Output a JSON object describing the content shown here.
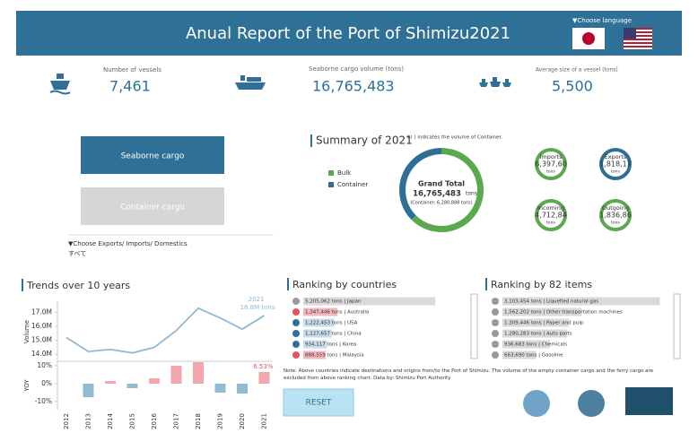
{
  "header": {
    "title": "Anual Report of the Port of Shimizu2021",
    "language_label": "▼Choose language"
  },
  "kpis": [
    {
      "label": "Number of vessels",
      "value": "7,461"
    },
    {
      "label": "Seaborne cargo volume (tons)",
      "value": "16,765,483"
    },
    {
      "label": "Average size of a vessel (tons)",
      "value": "5,500"
    }
  ],
  "buttons": {
    "seaborne": "Seaborne cargo",
    "container": "Container cargo",
    "reset": "RESET"
  },
  "filter": {
    "label": "▼Choose Exports/ Imports/ Domestics",
    "value": "すべて"
  },
  "summary": {
    "title": "Summary of 2021",
    "note": "※( ) indicates the volume of Container.",
    "grand_total_label": "Grand Total",
    "grand_total": "16,765,483",
    "unit": "tons",
    "container_note": "(Container: 6,280,888 tons)",
    "circles": [
      {
        "label": "Imports",
        "value": "6,397,60",
        "unit": "tons"
      },
      {
        "label": "Exports",
        "value": "1,818,17",
        "unit": "tons"
      },
      {
        "label": "Incoming",
        "value": "4,712,84",
        "unit": "tons"
      },
      {
        "label": "Outgoing",
        "value": "1,836,86",
        "unit": "tons"
      }
    ]
  },
  "rank_titles": {
    "countries": "Ranking by countries",
    "items": "Ranking by 82 items"
  },
  "footnote": "Note: Above countries indicate destinations and origins from/to the Port of Shimizu. The volume of the empty container cargo and the ferry cargo are excluded from above ranking chart. Data by: Shimizu Port Authority",
  "chart_data": [
    {
      "type": "line",
      "title": "Trends over 10 years",
      "y_label": "Volume",
      "color": "#8fb8d2",
      "categories": [
        "2012",
        "2013",
        "2014",
        "2015",
        "2016",
        "2017",
        "2018",
        "2019",
        "2020",
        "2021"
      ],
      "values": [
        15.2,
        14.2,
        14.35,
        14.1,
        14.5,
        15.7,
        17.3,
        16.6,
        15.8,
        16.77
      ],
      "value_labels": [
        null,
        null,
        null,
        null,
        null,
        null,
        null,
        null,
        null,
        "16.8M tons"
      ],
      "annotation": "2021",
      "ylim": [
        13.5,
        17.8
      ],
      "yticks": [
        {
          "value": 14,
          "label": "14.0M"
        },
        {
          "value": 15,
          "label": "15.0M"
        },
        {
          "value": 16,
          "label": "16.0M"
        },
        {
          "value": 17,
          "label": "17.0M"
        }
      ]
    },
    {
      "type": "bar",
      "y_label": "YOY",
      "positive_color": "#f1a7ad",
      "negative_color": "#93bcd3",
      "values": [
        null,
        -7.5,
        1.5,
        -2.5,
        3,
        10,
        12,
        -5,
        -5.5,
        6.53
      ],
      "value_labels": [
        null,
        null,
        null,
        null,
        null,
        null,
        null,
        null,
        null,
        "6.53%"
      ],
      "ylim": [
        -14.5,
        12.5
      ],
      "yticks": [
        {
          "value": -10,
          "label": "-10%"
        },
        {
          "value": 0,
          "label": "0%"
        },
        {
          "value": 10,
          "label": "10%"
        }
      ]
    },
    {
      "type": "donut",
      "categories": [
        "Bulk",
        "Container"
      ],
      "values": [
        10484595,
        6280888
      ],
      "colors": [
        "#5ba84e",
        "#2e6f96"
      ]
    },
    {
      "type": "hbar",
      "labels": [
        "5,205,062 tons | Japan",
        "1,347,446 tons | Australia",
        "1,222,453 tons | USA",
        "1,127,657 tons | China",
        "934,117 tons | Korea",
        "888,559 tons | Malaysia"
      ],
      "values": [
        5205062,
        1347446,
        1222453,
        1127657,
        934117,
        888559
      ],
      "colors": [
        "#d9d9d9",
        "#f4b8bc",
        "#c7dce8",
        "#c7dce8",
        "#c7dce8",
        "#f4b8bc"
      ],
      "xlim": [
        0,
        5300000
      ]
    },
    {
      "type": "hbar",
      "labels": [
        "3,103,454 tons | Liquefied natural gas",
        "1,562,202 tons | Other transportation machines",
        "1,309,446 tons | Paper and pulp",
        "1,280,283 tons | Auto parts",
        "936,683 tons | Chemicals",
        "663,690 tons | Gasoline"
      ],
      "values": [
        3103454,
        1562202,
        1309446,
        1280283,
        936683,
        663690
      ],
      "colors": [
        "#d9d9d9",
        "#d9d9d9",
        "#d9d9d9",
        "#d9d9d9",
        "#d9d9d9",
        "#d9d9d9"
      ],
      "xlim": [
        0,
        3150000
      ]
    }
  ]
}
